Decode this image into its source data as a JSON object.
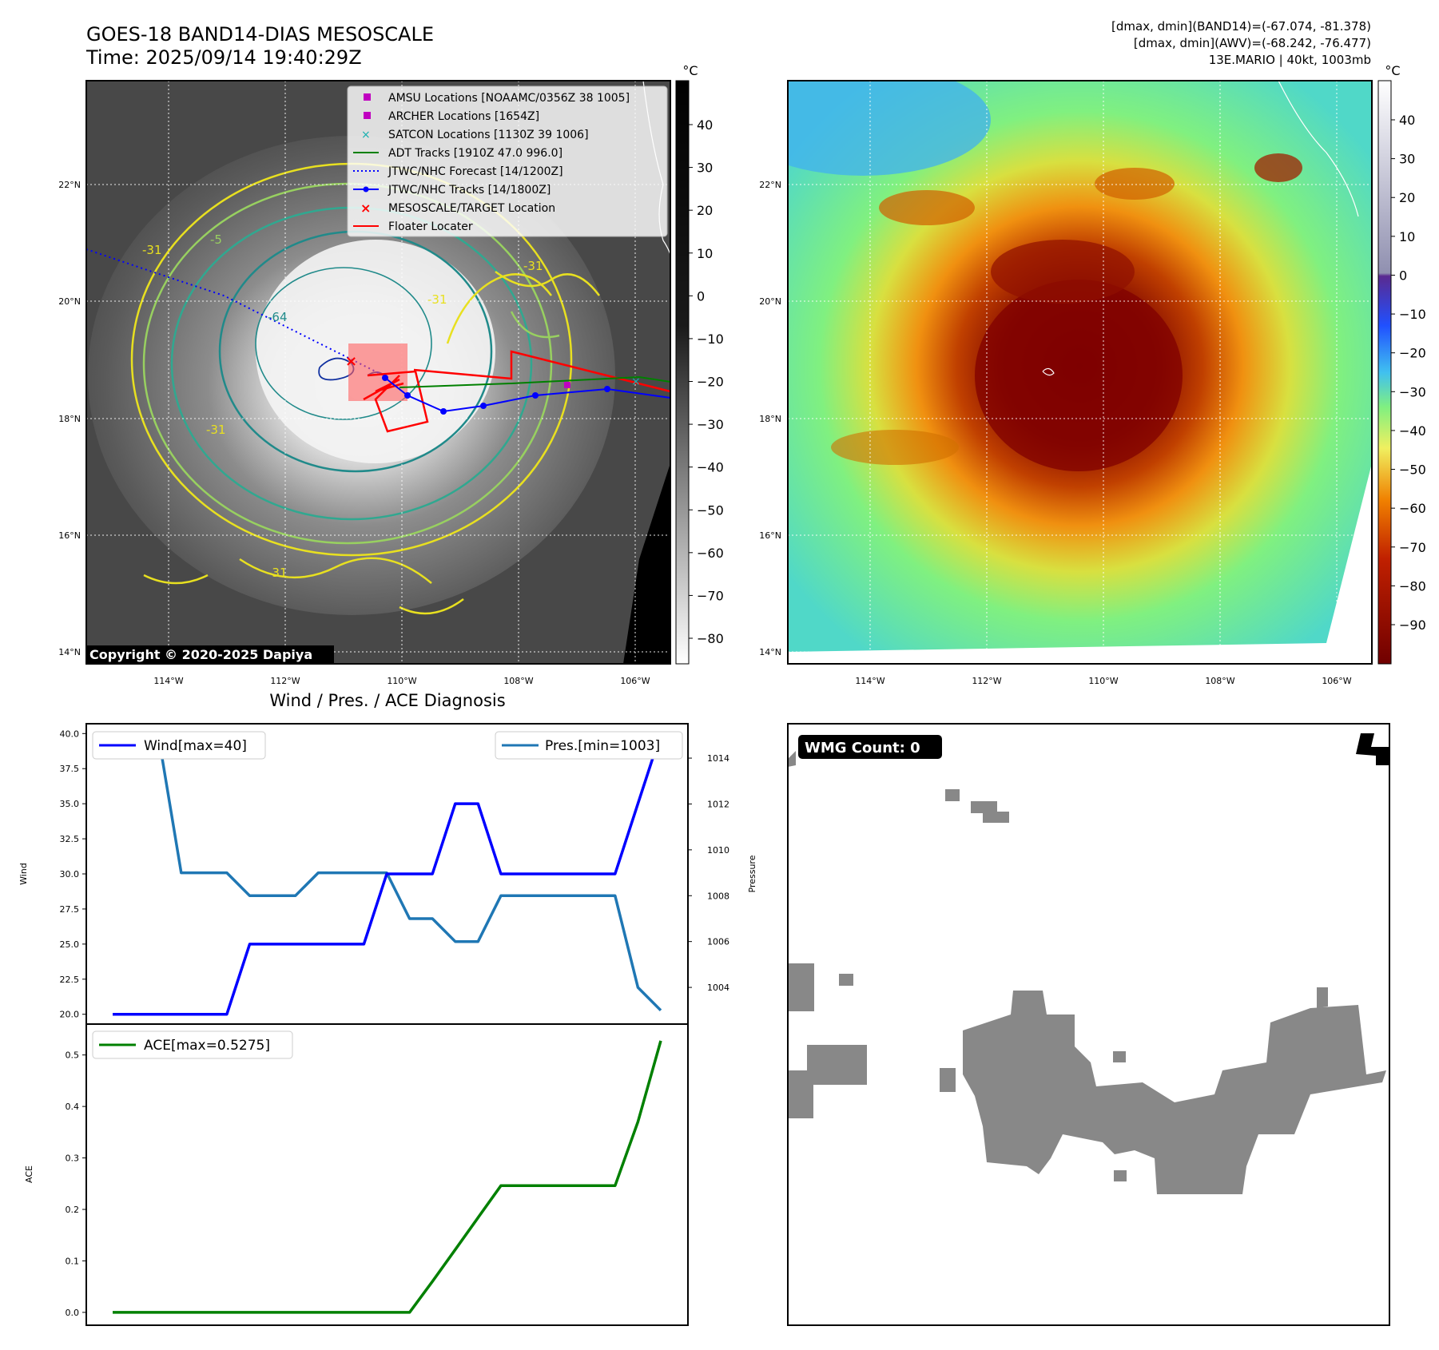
{
  "header": {
    "title_line1": "GOES-18 BAND14-DIAS MESOSCALE",
    "title_line2": "Time: 2025/09/14 19:40:29Z",
    "info_line1": "[dmax, dmin](BAND14)=(-67.074, -81.378)",
    "info_line2": "[dmax, dmin](AWV)=(-68.242, -76.477)",
    "info_line3": "13E.MARIO | 40kt, 1003mb"
  },
  "map": {
    "lat_labels": [
      "22°N",
      "20°N",
      "18°N",
      "16°N",
      "14°N"
    ],
    "lon_labels": [
      "114°W",
      "112°W",
      "110°W",
      "108°W",
      "106°W"
    ],
    "copyright": "Copyright © 2020-2025 Dapiya",
    "contour_labels": [
      "-31",
      "-64",
      "-31",
      "-31",
      "-31",
      "-5",
      "-31"
    ]
  },
  "colorbar_left": {
    "unit": "°C",
    "ticks": [
      "40",
      "30",
      "20",
      "10",
      "0",
      "−10",
      "−20",
      "−30",
      "−40",
      "−50",
      "−60",
      "−70",
      "−80"
    ]
  },
  "colorbar_right": {
    "unit": "°C",
    "ticks": [
      "40",
      "30",
      "20",
      "10",
      "0",
      "−10",
      "−20",
      "−30",
      "−40",
      "−50",
      "−60",
      "−70",
      "−80",
      "−90"
    ]
  },
  "legend": {
    "items": [
      {
        "label": "AMSU Locations [NOAAMC/0356Z 38 1005]",
        "symbol": "square",
        "color": "#c000c0"
      },
      {
        "label": "ARCHER Locations [1654Z]",
        "symbol": "square",
        "color": "#c000c0"
      },
      {
        "label": "SATCON Locations [1130Z 39 1006]",
        "symbol": "x",
        "color": "#18b0b0"
      },
      {
        "label": "ADT Tracks [1910Z 47.0 996.0]",
        "symbol": "line",
        "color": "#008000"
      },
      {
        "label": "JTWC/NHC Forecast [14/1200Z]",
        "symbol": "dotted",
        "color": "#0000ff"
      },
      {
        "label": "JTWC/NHC Tracks [14/1800Z]",
        "symbol": "line-dot",
        "color": "#0000ff"
      },
      {
        "label": "MESOSCALE/TARGET Location",
        "symbol": "x",
        "color": "#ff0000"
      },
      {
        "label": "Floater Locater",
        "symbol": "line",
        "color": "#ff0000"
      }
    ]
  },
  "diag_title": "Wind / Pres. / ACE Diagnosis",
  "wmg": {
    "label": "WMG Count: 0"
  },
  "chart_data": [
    {
      "type": "line",
      "series": [
        {
          "name": "Wind[max=40]",
          "axis": "left",
          "color": "#0000ff",
          "values": [
            20,
            20,
            20,
            20,
            20,
            20,
            25,
            25,
            25,
            25,
            25,
            25,
            30,
            30,
            30,
            35,
            35,
            30,
            30,
            30,
            30,
            30,
            30,
            35,
            40
          ]
        },
        {
          "name": "Pres.[min=1003]",
          "axis": "right",
          "color": "#1f77b4",
          "values": [
            1015,
            1015,
            1015,
            1009,
            1009,
            1009,
            1008,
            1008,
            1008,
            1009,
            1009,
            1009,
            1009,
            1007,
            1007,
            1006,
            1006,
            1008,
            1008,
            1008,
            1008,
            1008,
            1008,
            1004,
            1003
          ]
        }
      ],
      "ylabel_left": "Wind",
      "ylabel_right": "Pressure",
      "ylim_left": [
        19.3,
        40.7
      ],
      "ylim_right": [
        1002.4,
        1015.5
      ],
      "yticks_left": [
        "40.0",
        "37.5",
        "35.0",
        "32.5",
        "30.0",
        "27.5",
        "25.0",
        "22.5",
        "20.0"
      ],
      "yticks_right": [
        "1014",
        "1012",
        "1010",
        "1008",
        "1006",
        "1004"
      ]
    },
    {
      "type": "line",
      "series": [
        {
          "name": "ACE[max=0.5275]",
          "color": "#008000",
          "values": [
            0,
            0,
            0,
            0,
            0,
            0,
            0,
            0,
            0,
            0,
            0,
            0,
            0,
            0,
            0.06,
            0.122,
            0.184,
            0.2461,
            0.2461,
            0.2461,
            0.2461,
            0.2461,
            0.2461,
            0.37,
            0.5275
          ]
        }
      ],
      "ylabel": "ACE",
      "ylim": [
        -0.025,
        0.56
      ],
      "yticks": [
        "0.0",
        "0.1",
        "0.2",
        "0.3",
        "0.4",
        "0.5"
      ]
    }
  ]
}
